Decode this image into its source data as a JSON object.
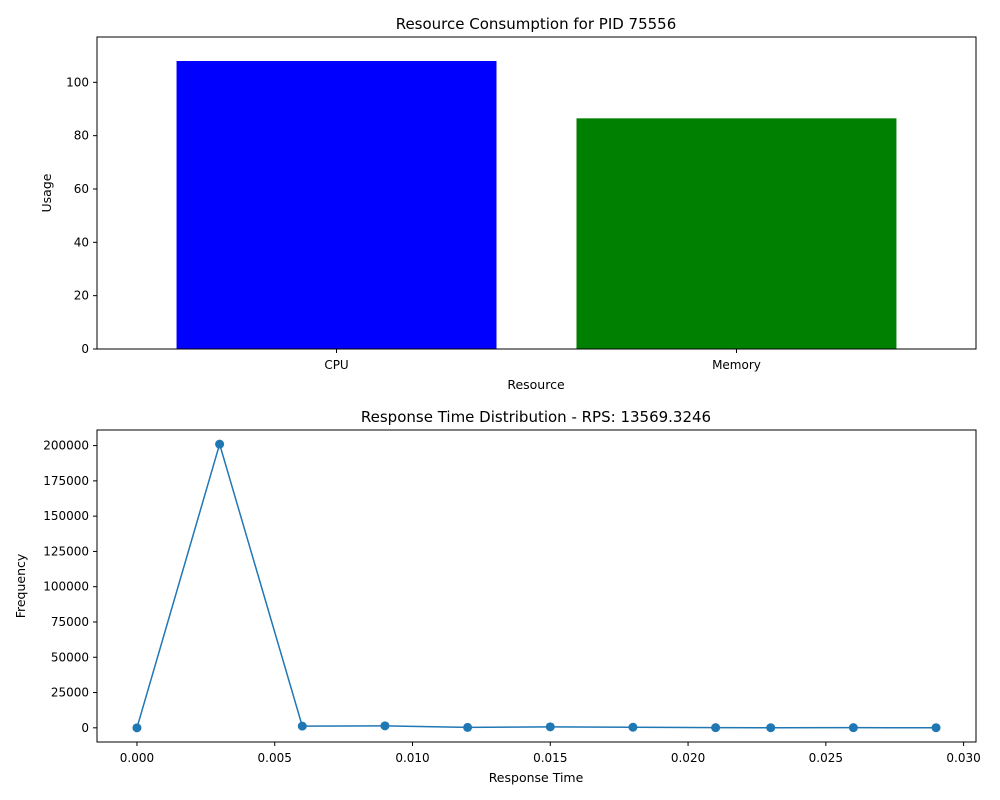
{
  "chart_data": [
    {
      "type": "bar",
      "title": "Resource Consumption for PID 75556",
      "xlabel": "Resource",
      "ylabel": "Usage",
      "categories": [
        "CPU",
        "Memory"
      ],
      "values": [
        108,
        86.5
      ],
      "colors": [
        "#0000ff",
        "#008000"
      ],
      "ylim": [
        0,
        117
      ],
      "yticks": [
        0,
        20,
        40,
        60,
        80,
        100
      ],
      "grid": false
    },
    {
      "type": "line",
      "title": "Response Time Distribution - RPS: 13569.3246",
      "xlabel": "Response Time",
      "ylabel": "Frequency",
      "x": [
        0.0,
        0.003,
        0.006,
        0.009,
        0.012,
        0.015,
        0.018,
        0.021,
        0.023,
        0.026,
        0.029
      ],
      "y": [
        0,
        201000,
        1200,
        1400,
        300,
        700,
        400,
        100,
        80,
        100,
        80
      ],
      "color": "#1f77b4",
      "marker": "circle",
      "xlim": [
        -0.00145,
        0.03045
      ],
      "ylim": [
        -10050,
        211050
      ],
      "xticks": [
        0.0,
        0.005,
        0.01,
        0.015,
        0.02,
        0.025,
        0.03
      ],
      "xtick_labels": [
        "0.000",
        "0.005",
        "0.010",
        "0.015",
        "0.020",
        "0.025",
        "0.030"
      ],
      "yticks": [
        0,
        25000,
        50000,
        75000,
        100000,
        125000,
        150000,
        175000,
        200000
      ],
      "grid": false
    }
  ]
}
